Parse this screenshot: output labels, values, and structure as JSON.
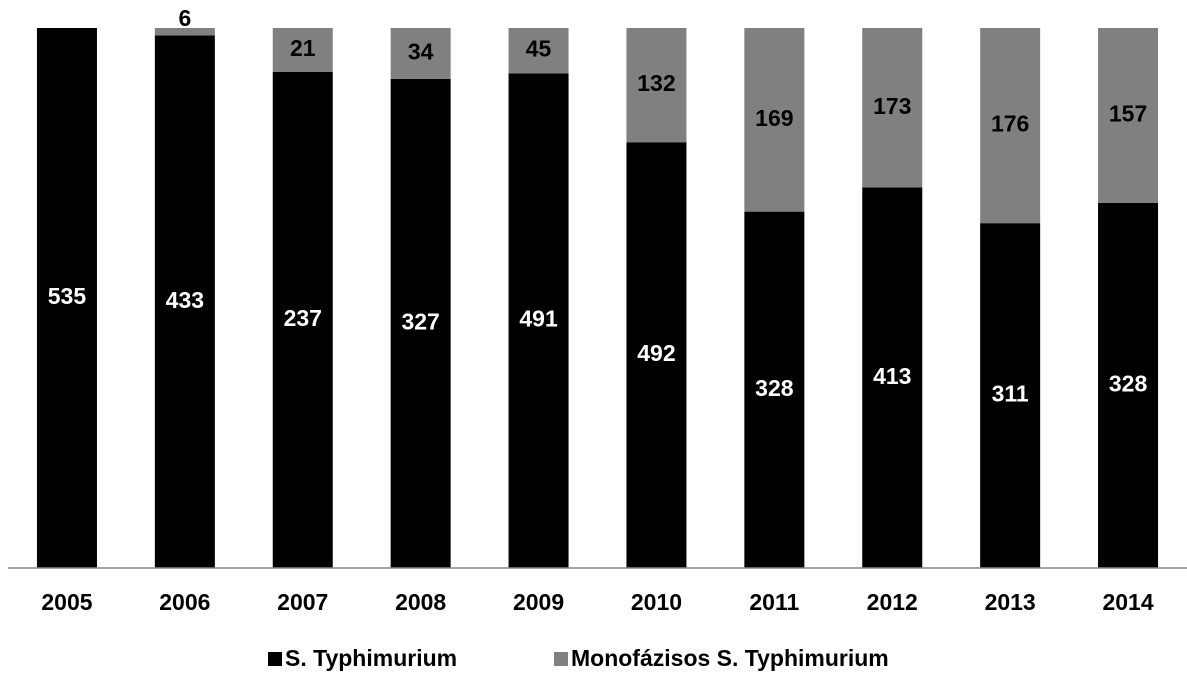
{
  "chart_data": {
    "type": "bar",
    "stacking": "percent",
    "categories": [
      "2005",
      "2006",
      "2007",
      "2008",
      "2009",
      "2010",
      "2011",
      "2012",
      "2013",
      "2014"
    ],
    "series": [
      {
        "name": "S. Typhimurium",
        "color": "#000000",
        "values": [
          535,
          433,
          237,
          327,
          491,
          492,
          328,
          413,
          311,
          328
        ]
      },
      {
        "name": "Monofázisos S. Typhimurium",
        "color": "#808080",
        "values": [
          null,
          6,
          21,
          34,
          45,
          132,
          169,
          173,
          176,
          157
        ]
      }
    ],
    "legend": "bottom"
  }
}
